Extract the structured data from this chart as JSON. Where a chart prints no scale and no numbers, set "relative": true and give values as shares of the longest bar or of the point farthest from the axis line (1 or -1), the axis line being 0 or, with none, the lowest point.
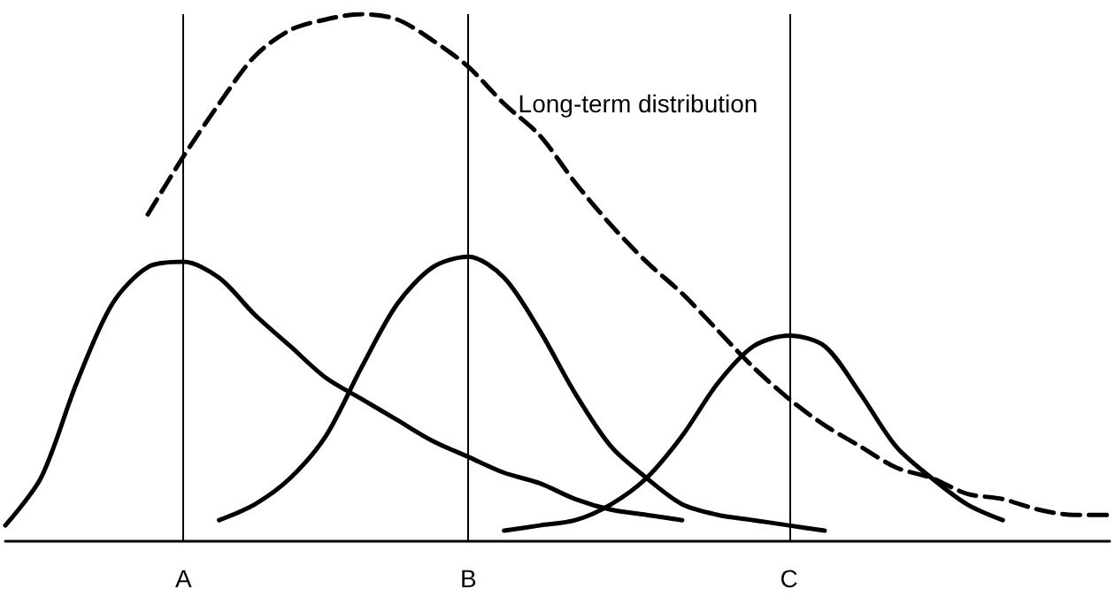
{
  "chart_data": {
    "type": "line",
    "relative": true,
    "categories": [
      null,
      null,
      null,
      null,
      null,
      "A",
      null,
      null,
      null,
      null,
      null,
      null,
      null,
      "B",
      null,
      null,
      null,
      null,
      null,
      null,
      null,
      null,
      "C",
      null,
      null,
      null,
      null,
      null,
      null,
      null,
      null,
      null
    ],
    "series": [
      {
        "name": "Long-term distribution",
        "color": "#000000",
        "line_style": "dashed",
        "values": [
          null,
          null,
          null,
          null,
          0.62,
          0.73,
          0.83,
          0.92,
          0.97,
          0.99,
          1,
          0.99,
          0.95,
          0.9,
          0.83,
          0.77,
          0.68,
          0.6,
          0.53,
          0.47,
          0.4,
          0.33,
          0.27,
          0.22,
          0.18,
          0.14,
          0.12,
          0.09,
          0.08,
          0.06,
          0.05,
          0.05
        ]
      },
      {
        "color": "#000000",
        "line_style": "solid",
        "values": [
          0.03,
          0.12,
          0.3,
          0.45,
          0.52,
          0.53,
          0.5,
          0.43,
          0.37,
          0.31,
          0.27,
          0.23,
          0.19,
          0.16,
          0.13,
          0.11,
          0.08,
          0.06,
          0.05,
          0.04,
          null,
          null,
          null,
          null,
          null,
          null,
          null,
          null,
          null,
          null,
          null,
          null
        ]
      },
      {
        "color": "#000000",
        "line_style": "solid",
        "values": [
          null,
          null,
          null,
          null,
          null,
          null,
          0.04,
          0.07,
          0.12,
          0.2,
          0.33,
          0.45,
          0.52,
          0.54,
          0.5,
          0.4,
          0.28,
          0.18,
          0.12,
          0.07,
          0.05,
          0.04,
          0.03,
          0.02,
          null,
          null,
          null,
          null,
          null,
          null,
          null,
          null
        ]
      },
      {
        "color": "#000000",
        "line_style": "solid",
        "values": [
          null,
          null,
          null,
          null,
          null,
          null,
          null,
          null,
          null,
          null,
          null,
          null,
          null,
          null,
          0.02,
          0.03,
          0.04,
          0.07,
          0.12,
          0.2,
          0.3,
          0.37,
          0.39,
          0.37,
          0.28,
          0.18,
          0.12,
          0.07,
          0.04,
          null,
          null,
          null
        ]
      }
    ],
    "ref_lines": [
      {
        "axis": "x",
        "value": "A"
      },
      {
        "axis": "x",
        "value": "B"
      },
      {
        "axis": "x",
        "value": "C"
      }
    ],
    "marker": "none",
    "grid": false,
    "legend": false
  }
}
